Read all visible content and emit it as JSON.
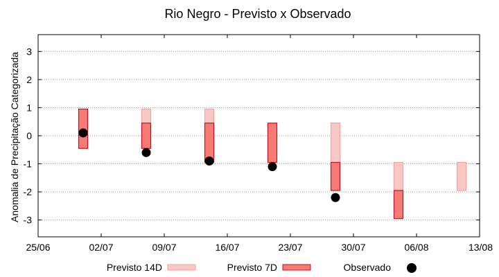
{
  "chart_data": {
    "type": "bar",
    "title": "Rio Negro - Previsto x Observado",
    "ylabel": "Anomalia de Precipitação Categorizada",
    "xlabel": "",
    "ylim": [
      -3.6,
      3.6
    ],
    "yticks": [
      3,
      2,
      1,
      0,
      -1,
      -2,
      -3
    ],
    "xlim": [
      "2025-06-25",
      "2025-08-13"
    ],
    "xtick_labels": [
      "25/06",
      "02/07",
      "09/07",
      "16/07",
      "23/07",
      "30/07",
      "06/08",
      "13/08"
    ],
    "xtick_dates": [
      "2025-06-25",
      "2025-07-02",
      "2025-07-09",
      "2025-07-16",
      "2025-07-23",
      "2025-07-30",
      "2025-08-06",
      "2025-08-13"
    ],
    "grid": true,
    "legend_position": "bottom",
    "colors": {
      "previsto_14d_fill": "#f9c8c4",
      "previsto_14d_stroke": "#f2a39c",
      "previsto_7d_fill": "#f77b74",
      "previsto_7d_stroke": "#c4102a",
      "observado": "#000000"
    },
    "series": [
      {
        "name": "Previsto 14D",
        "kind": "range",
        "points": [
          {
            "x": "2025-07-07",
            "low": -0.45,
            "high": 0.95
          },
          {
            "x": "2025-07-14",
            "low": -0.45,
            "high": 0.95
          },
          {
            "x": "2025-07-28",
            "low": -0.95,
            "high": 0.45
          },
          {
            "x": "2025-08-04",
            "low": -1.95,
            "high": -0.95
          },
          {
            "x": "2025-08-11",
            "low": -1.95,
            "high": -0.95
          }
        ]
      },
      {
        "name": "Previsto 7D",
        "kind": "range",
        "points": [
          {
            "x": "2025-06-30",
            "low": -0.45,
            "high": 0.95
          },
          {
            "x": "2025-07-07",
            "low": -0.45,
            "high": 0.45
          },
          {
            "x": "2025-07-14",
            "low": -0.95,
            "high": 0.45
          },
          {
            "x": "2025-07-21",
            "low": -0.95,
            "high": 0.45
          },
          {
            "x": "2025-07-28",
            "low": -1.95,
            "high": -0.95
          },
          {
            "x": "2025-08-04",
            "low": -2.95,
            "high": -1.95
          }
        ]
      },
      {
        "name": "Observado",
        "kind": "point",
        "points": [
          {
            "x": "2025-06-30",
            "y": 0.1
          },
          {
            "x": "2025-07-07",
            "y": -0.6
          },
          {
            "x": "2025-07-14",
            "y": -0.9
          },
          {
            "x": "2025-07-21",
            "y": -1.1
          },
          {
            "x": "2025-07-28",
            "y": -2.2
          }
        ]
      }
    ]
  }
}
